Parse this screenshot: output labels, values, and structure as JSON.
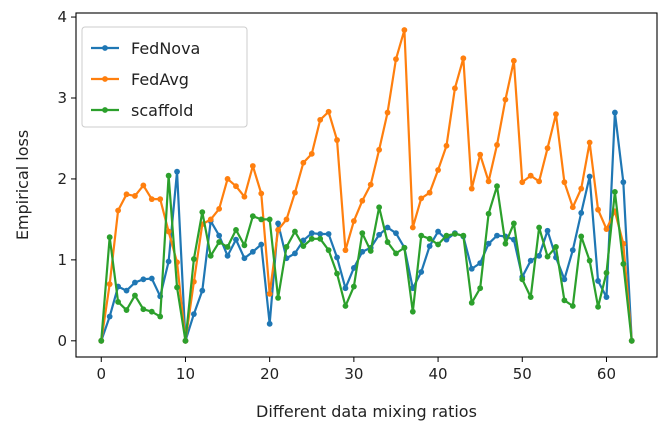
{
  "chart_data": {
    "type": "line",
    "xlabel": "Different data mixing ratios",
    "ylabel": "Empirical loss",
    "xlim": [
      -3,
      66
    ],
    "ylim": [
      -0.2,
      4.05
    ],
    "xticks": [
      0,
      10,
      20,
      30,
      40,
      50,
      60
    ],
    "yticks": [
      0,
      1,
      2,
      3,
      4
    ],
    "grid": false,
    "legend": "top-left",
    "x": [
      0,
      1,
      2,
      3,
      4,
      5,
      6,
      7,
      8,
      9,
      10,
      11,
      12,
      13,
      14,
      15,
      16,
      17,
      18,
      19,
      20,
      21,
      22,
      23,
      24,
      25,
      26,
      27,
      28,
      29,
      30,
      31,
      32,
      33,
      34,
      35,
      36,
      37,
      38,
      39,
      40,
      41,
      42,
      43,
      44,
      45,
      46,
      47,
      48,
      49,
      50,
      51,
      52,
      53,
      54,
      55,
      56,
      57,
      58,
      59,
      60,
      61,
      62,
      63
    ],
    "series": [
      {
        "name": "FedNova",
        "color": "#1f77b4",
        "values": [
          0,
          0.3,
          0.67,
          0.62,
          0.72,
          0.76,
          0.77,
          0.55,
          0.98,
          2.09,
          0,
          0.33,
          0.62,
          1.48,
          1.3,
          1.05,
          1.25,
          1.02,
          1.1,
          1.19,
          0.21,
          1.45,
          1.02,
          1.08,
          1.24,
          1.33,
          1.32,
          1.32,
          1.03,
          0.65,
          0.9,
          1.1,
          1.15,
          1.31,
          1.4,
          1.33,
          1.15,
          0.65,
          0.85,
          1.17,
          1.35,
          1.25,
          1.33,
          1.29,
          0.89,
          0.96,
          1.2,
          1.3,
          1.29,
          1.25,
          0.79,
          0.99,
          1.05,
          1.36,
          1.03,
          0.76,
          1.12,
          1.58,
          2.03,
          0.74,
          0.54,
          2.82,
          1.96,
          0
        ]
      },
      {
        "name": "FedAvg",
        "color": "#ff7f0e",
        "values": [
          0,
          0.7,
          1.61,
          1.81,
          1.79,
          1.92,
          1.75,
          1.75,
          1.35,
          0.97,
          0,
          0.73,
          1.44,
          1.5,
          1.63,
          2.0,
          1.91,
          1.78,
          2.16,
          1.82,
          0.58,
          1.37,
          1.5,
          1.83,
          2.2,
          2.31,
          2.73,
          2.83,
          2.48,
          1.12,
          1.48,
          1.73,
          1.93,
          2.36,
          2.82,
          3.48,
          3.84,
          1.4,
          1.76,
          1.83,
          2.11,
          2.41,
          3.12,
          3.49,
          1.88,
          2.3,
          1.97,
          2.42,
          2.98,
          3.46,
          1.96,
          2.04,
          1.97,
          2.38,
          2.8,
          1.96,
          1.65,
          1.88,
          2.45,
          1.62,
          1.38,
          1.6,
          1.2,
          0
        ]
      },
      {
        "name": "scaffold",
        "color": "#2ca02c",
        "values": [
          0,
          1.28,
          0.48,
          0.38,
          0.56,
          0.39,
          0.36,
          0.3,
          2.04,
          0.66,
          0,
          1.01,
          1.59,
          1.05,
          1.22,
          1.16,
          1.37,
          1.18,
          1.54,
          1.5,
          1.5,
          0.53,
          1.16,
          1.35,
          1.17,
          1.26,
          1.26,
          1.12,
          0.83,
          0.43,
          0.67,
          1.33,
          1.11,
          1.65,
          1.22,
          1.08,
          1.15,
          0.36,
          1.3,
          1.26,
          1.19,
          1.3,
          1.32,
          1.3,
          0.47,
          0.65,
          1.57,
          1.91,
          1.2,
          1.45,
          0.76,
          0.54,
          1.4,
          1.04,
          1.16,
          0.5,
          0.43,
          1.29,
          0.99,
          0.42,
          0.84,
          1.84,
          0.95,
          0
        ]
      }
    ]
  }
}
